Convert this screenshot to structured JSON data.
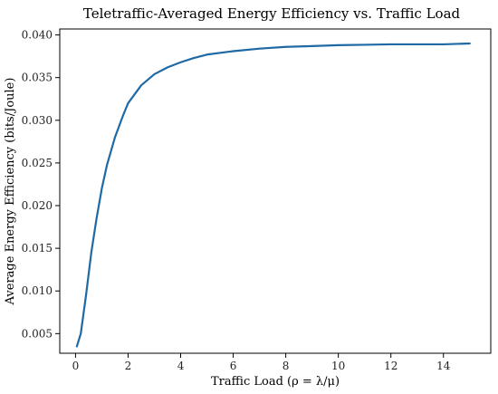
{
  "chart_data": {
    "type": "line",
    "title": "Teletraffic-Averaged Energy Efficiency vs. Traffic Load",
    "xlabel": "Traffic Load (ρ = λ/μ)",
    "ylabel": "Average Energy Efficiency (bits/Joule)",
    "xlim": [
      -0.6,
      15.8
    ],
    "ylim": [
      0.0027,
      0.0407
    ],
    "xticks": [
      0,
      2,
      4,
      6,
      8,
      10,
      12,
      14
    ],
    "xtick_labels": [
      "0",
      "2",
      "4",
      "6",
      "8",
      "10",
      "12",
      "14"
    ],
    "yticks": [
      0.005,
      0.01,
      0.015,
      0.02,
      0.025,
      0.03,
      0.035,
      0.04
    ],
    "ytick_labels": [
      "0.005",
      "0.010",
      "0.015",
      "0.020",
      "0.025",
      "0.030",
      "0.035",
      "0.040"
    ],
    "grid": false,
    "series": [
      {
        "color": "#1f6aa5",
        "x": [
          0.05,
          0.2,
          0.4,
          0.6,
          0.8,
          1.0,
          1.2,
          1.5,
          1.8,
          2.0,
          2.5,
          3.0,
          3.5,
          4.0,
          4.5,
          5.0,
          6.0,
          7.0,
          8.0,
          9.0,
          10.0,
          11.0,
          12.0,
          13.0,
          14.0,
          15.0
        ],
        "y": [
          0.0035,
          0.005,
          0.0095,
          0.0145,
          0.0185,
          0.022,
          0.0248,
          0.028,
          0.0305,
          0.032,
          0.0341,
          0.0354,
          0.0362,
          0.0368,
          0.0373,
          0.0377,
          0.0381,
          0.0384,
          0.0386,
          0.0387,
          0.0388,
          0.03885,
          0.0389,
          0.0389,
          0.0389,
          0.039
        ]
      }
    ]
  }
}
